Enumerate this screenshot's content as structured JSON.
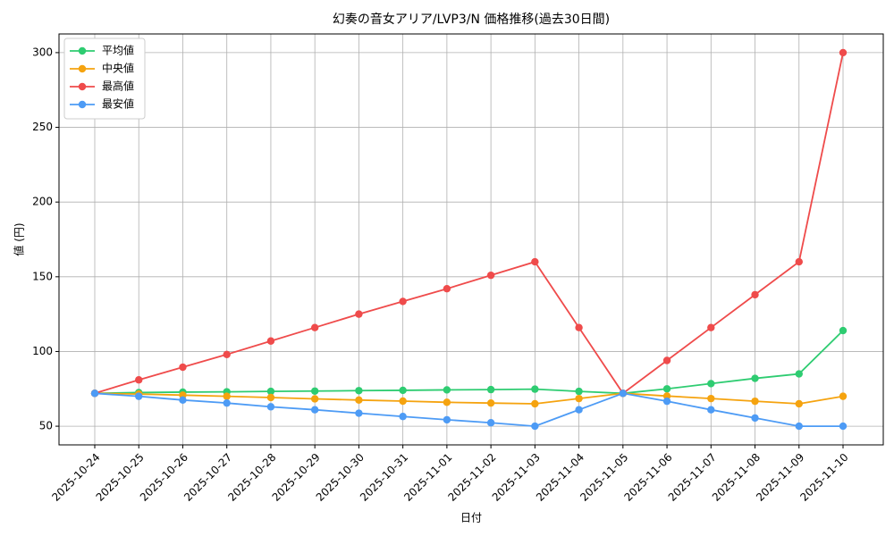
{
  "chart_data": {
    "type": "line",
    "title": "幻奏の音女アリア/LVP3/N 価格推移(過去30日間)",
    "x_label": "日付",
    "y_label": "値 (円)",
    "categories": [
      "2025-10-24",
      "2025-10-25",
      "2025-10-26",
      "2025-10-27",
      "2025-10-28",
      "2025-10-29",
      "2025-10-30",
      "2025-10-31",
      "2025-11-01",
      "2025-11-02",
      "2025-11-03",
      "2025-11-04",
      "2025-11-05",
      "2025-11-06",
      "2025-11-07",
      "2025-11-08",
      "2025-11-09",
      "2025-11-10"
    ],
    "series": [
      {
        "name": "平均値",
        "color": "#2ecc71",
        "values": [
          72,
          72.5,
          72.8,
          73,
          73.3,
          73.5,
          73.8,
          74,
          74.3,
          74.5,
          74.8,
          73.3,
          72,
          75,
          78.5,
          82,
          85,
          114
        ]
      },
      {
        "name": "中央値",
        "color": "#f5a30f",
        "values": [
          72,
          71.5,
          70.8,
          70,
          69.2,
          68.3,
          67.5,
          66.8,
          66,
          65.5,
          65,
          68.5,
          72,
          70.2,
          68.5,
          66.7,
          65,
          70
        ]
      },
      {
        "name": "最高値",
        "color": "#ef4b4b",
        "values": [
          72,
          81,
          89.5,
          98,
          107,
          116,
          125,
          133.5,
          142,
          151,
          160,
          116,
          72,
          94,
          116,
          138,
          160,
          300
        ]
      },
      {
        "name": "最安値",
        "color": "#4d9bf5",
        "values": [
          72,
          70,
          67.5,
          65.5,
          63,
          61,
          58.7,
          56.5,
          54.3,
          52.3,
          50,
          61,
          72,
          66.7,
          61,
          55.5,
          50,
          50
        ]
      }
    ],
    "ylim": [
      37.5,
      312.5
    ],
    "yticks": [
      50,
      100,
      150,
      200,
      250,
      300
    ],
    "grid": true,
    "legend": "upper-left"
  }
}
